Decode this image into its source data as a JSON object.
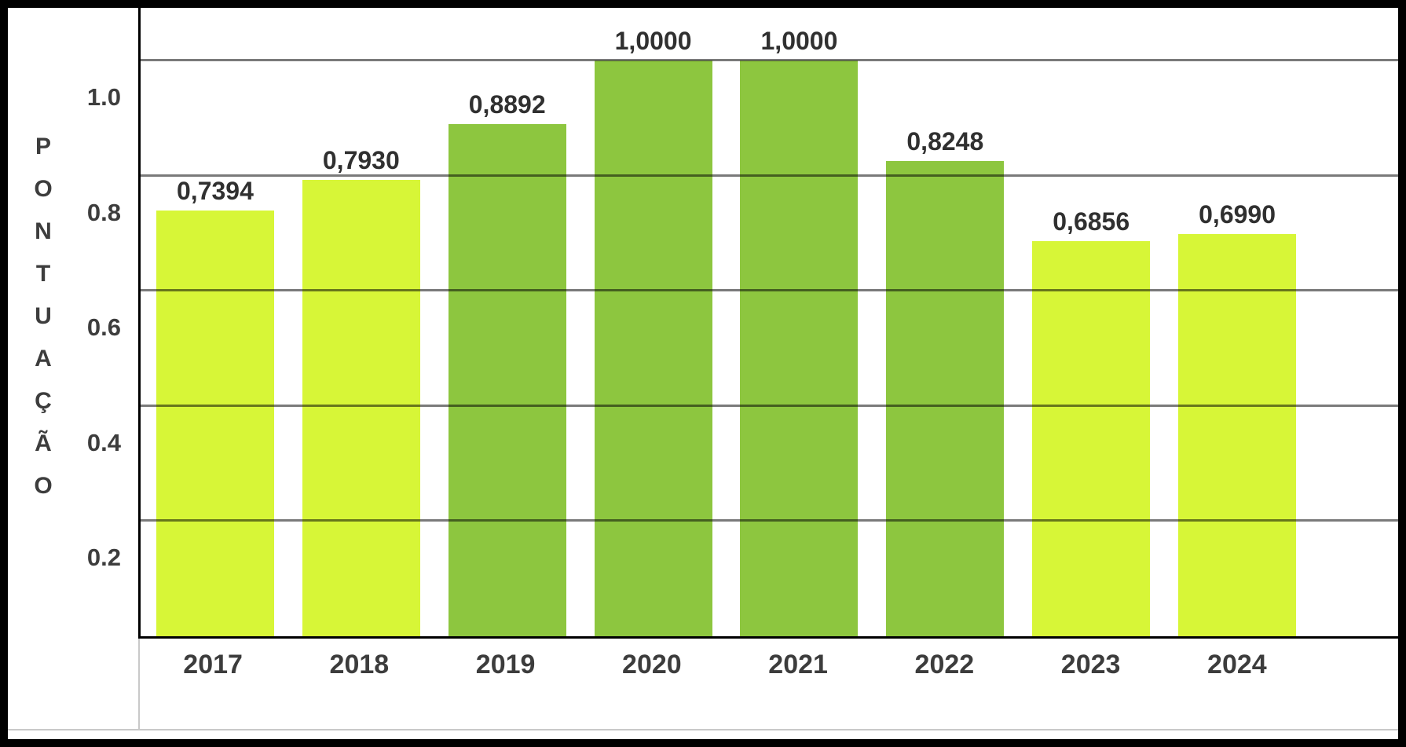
{
  "chart_data": {
    "type": "bar",
    "ylabel": "PONTUAÇÃO",
    "categories": [
      "2017",
      "2018",
      "2019",
      "2020",
      "2021",
      "2022",
      "2023",
      "2024"
    ],
    "values": [
      0.7394,
      0.793,
      0.8892,
      1.0,
      1.0,
      0.8248,
      0.6856,
      0.699
    ],
    "data_labels": [
      "0,7394",
      "0,7930",
      "0,8892",
      "1,0000",
      "1,0000",
      "0,8248",
      "0,6856",
      "0,6990"
    ],
    "bar_styles": [
      "light",
      "light",
      "dark",
      "dark",
      "dark",
      "dark",
      "light",
      "light"
    ],
    "palette": {
      "light": "#d7f637",
      "dark": "#8dc63f"
    },
    "yticks": [
      {
        "label": "1.0",
        "value": 1.0
      },
      {
        "label": "0.8",
        "value": 0.8
      },
      {
        "label": "0.6",
        "value": 0.6
      },
      {
        "label": "0.4",
        "value": 0.4
      },
      {
        "label": "0.2",
        "value": 0.2
      }
    ],
    "gridline_values": [
      1.0,
      0.8,
      0.6,
      0.4,
      0.2
    ],
    "ylim": [
      0,
      1.09
    ],
    "grid": true,
    "legend": "none",
    "axis_color": "#000000",
    "gridline_color": "#7a7a7a",
    "label_color": "#3c3c3c",
    "frame_color": "#000000",
    "background_color": "#ffffff"
  }
}
